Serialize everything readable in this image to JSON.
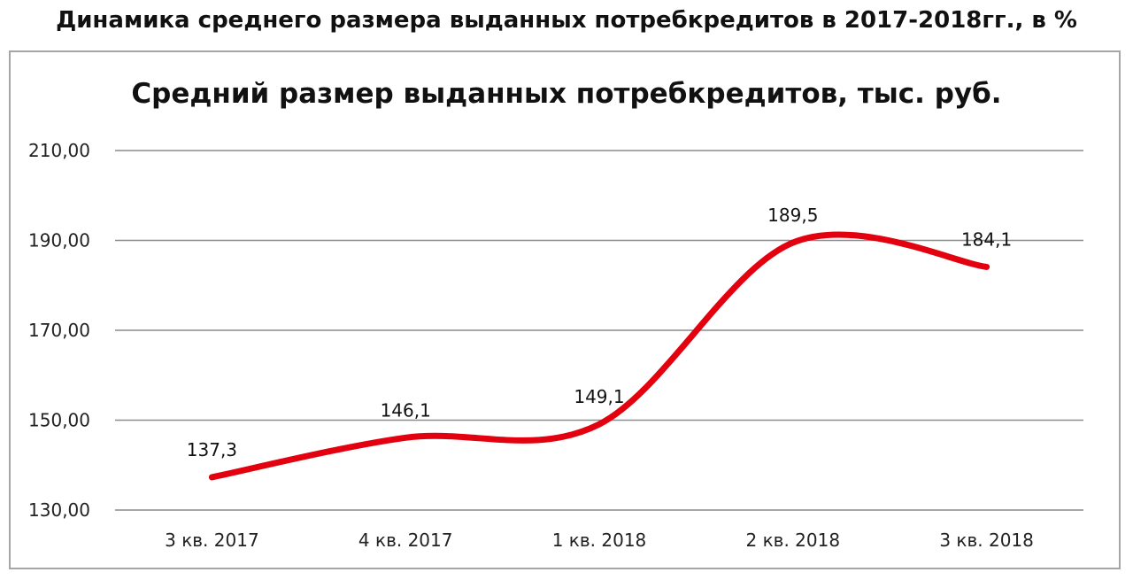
{
  "page": {
    "title": "Динамика среднего размера выданных потребкредитов в 2017-2018гг., в %"
  },
  "colors": {
    "line": "#e3000f",
    "grid": "#8c8c8c",
    "border": "#a6a6a6"
  },
  "chart_data": {
    "type": "line",
    "title": "Средний размер выданных потребкредитов, тыс. руб.",
    "categories": [
      "3 кв. 2017",
      "4 кв. 2017",
      "1 кв. 2018",
      "2 кв. 2018",
      "3 кв. 2018"
    ],
    "series": [
      {
        "values": [
          137.3,
          146.1,
          149.1,
          189.5,
          184.1
        ],
        "data_labels": [
          "137,3",
          "146,1",
          "149,1",
          "189,5",
          "184,1"
        ]
      }
    ],
    "ylim": [
      130,
      210
    ],
    "yticks": [
      130,
      150,
      170,
      190,
      210
    ],
    "ytick_labels": [
      "130,00",
      "150,00",
      "170,00",
      "190,00",
      "210,00"
    ],
    "smooth": true,
    "grid": true,
    "legend": "none"
  }
}
